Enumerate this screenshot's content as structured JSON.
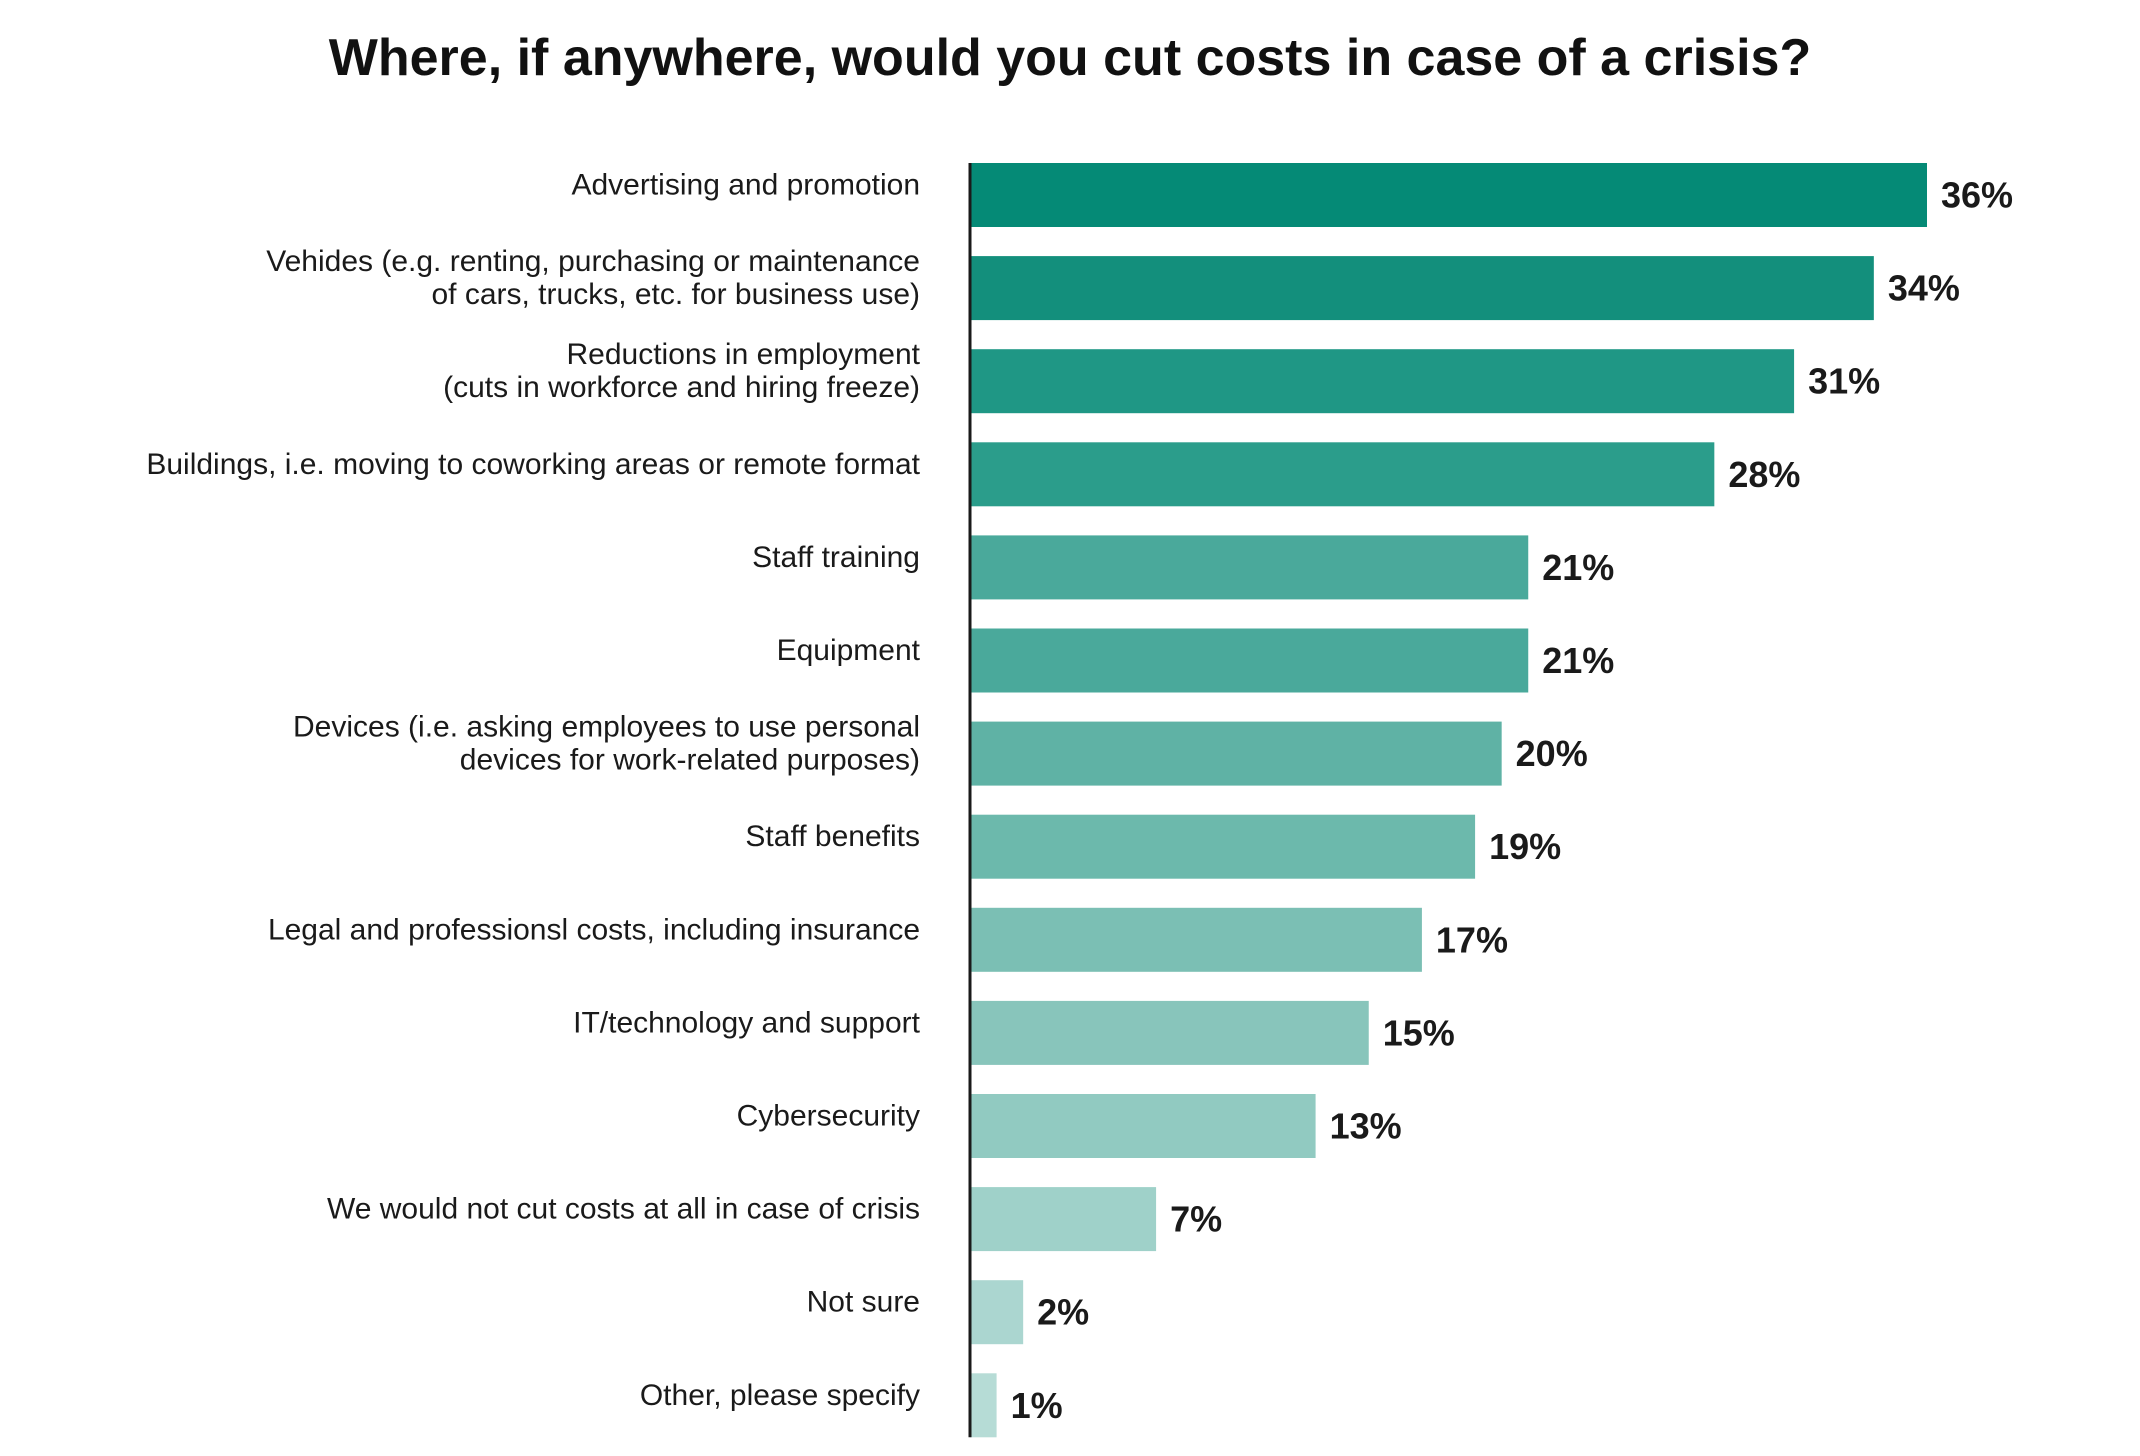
{
  "chart_data": {
    "type": "bar",
    "orientation": "horizontal",
    "title": "Where, if anywhere, would you cut costs in case of a crisis?",
    "xlabel": "",
    "ylabel": "",
    "xlim": [
      0,
      36
    ],
    "grid": false,
    "legend": "none",
    "value_suffix": "%",
    "categories": [
      [
        "Advertising and promotion"
      ],
      [
        "Vehides (e.g. renting, purchasing or maintenance",
        "of cars, trucks, etc. for business use)"
      ],
      [
        "Reductions in employment",
        "(cuts in workforce and hiring freeze)"
      ],
      [
        "Buildings, i.e. moving to coworking areas or remote format"
      ],
      [
        "Staff training"
      ],
      [
        "Equipment"
      ],
      [
        "Devices (i.e. asking employees to use personal",
        "devices for work-related purposes)"
      ],
      [
        "Staff benefits"
      ],
      [
        "Legal and professionsl costs, including insurance"
      ],
      [
        "IT/technology and support"
      ],
      [
        "Cybersecurity"
      ],
      [
        "We would not cut costs at all in case of crisis"
      ],
      [
        "Not sure"
      ],
      [
        "Other, please specify"
      ]
    ],
    "values": [
      36,
      34,
      31,
      28,
      21,
      21,
      20,
      19,
      17,
      15,
      13,
      7,
      2,
      1
    ],
    "colors": [
      "#058a76",
      "#138f7c",
      "#1f9785",
      "#2b9d8b",
      "#4aa99b",
      "#4aa99b",
      "#5fb2a5",
      "#6cb9ac",
      "#7bbfb4",
      "#88c5bb",
      "#91cac1",
      "#9fd1c9",
      "#abd6d0",
      "#b6dcd6"
    ],
    "axis_color": "#1a1a1a"
  }
}
